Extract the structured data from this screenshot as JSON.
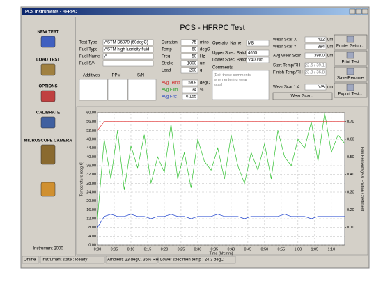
{
  "window": {
    "title": "PCS Instruments - HFRPC"
  },
  "sidebar": {
    "buttons": [
      "NEW TEST",
      "LOAD TEST",
      "OPTIONS",
      "CALIBRATE",
      "MICROSCOPE CAMERA"
    ],
    "instrument": "Instrument 2000"
  },
  "header": {
    "title": "PCS - HFRPC Test"
  },
  "test_fields": [
    {
      "label": "Test Type",
      "value": "ASTM D6079 (60degC)"
    },
    {
      "label": "Fuel Type",
      "value": "ASTM high lubricity fluid"
    },
    {
      "label": "Fuel Name",
      "value": "A"
    },
    {
      "label": "Fuel S/N"
    }
  ],
  "additives_headers": [
    "Additives",
    "PPM",
    "S/N"
  ],
  "param_fields": [
    {
      "label": "Duration",
      "value": "75",
      "unit": "mins"
    },
    {
      "label": "Temp",
      "value": "60",
      "unit": "degC"
    },
    {
      "label": "Freq",
      "value": "50",
      "unit": "Hz"
    },
    {
      "label": "Stroke",
      "value": "1000",
      "unit": "um"
    },
    {
      "label": "Load",
      "value": "200",
      "unit": "g"
    }
  ],
  "averages": [
    {
      "label": "Avg Temp",
      "value": "59.9",
      "unit": "degC",
      "color": "#d02020"
    },
    {
      "label": "Avg Film",
      "value": "34",
      "unit": "%",
      "color": "#20a020"
    },
    {
      "label": "Avg Fric",
      "value": "0.155",
      "color": "#2040c0"
    }
  ],
  "operator_fields": [
    {
      "label": "Operator Name",
      "value": "MB"
    },
    {
      "label": "Upper Spec. Batch",
      "value": "4655"
    },
    {
      "label": "Lower Spec. Batch",
      "value": "V400/05"
    }
  ],
  "comments": {
    "label": "Comments",
    "text": "[Edit these comments when entering wear scar]"
  },
  "wear_fields": [
    {
      "label": "Wear Scar X",
      "value": "412",
      "unit": "um"
    },
    {
      "label": "Wear Scar Y",
      "value": "384",
      "unit": "um"
    },
    {
      "label": "Avg Wear Scar",
      "value": "398.0",
      "unit": "um"
    },
    {
      "label": "Start Temp/RH",
      "value": "22.6 / 39.1"
    },
    {
      "label": "Finish Temp/RH",
      "value": "23.3 / 36.8"
    },
    {
      "label": "Wear Scar 1.4",
      "value": "N/A",
      "unit": "um"
    }
  ],
  "wear_button": "Wear Scar...",
  "right_buttons": [
    "Printer Setup...",
    "Print Test",
    "Save/Rename",
    "Export Test..."
  ],
  "status": [
    "Online",
    "Instrument state : Ready",
    "Ambient: 23 degC, 36% RH",
    "Lower specimen temp : 24.3 degC"
  ],
  "chart_data": {
    "type": "line",
    "ylabel": "Temperature (deg C)",
    "y2label": "Film Percentage & Friction Coefficient",
    "xlabel": "Time (hh:mm)",
    "grid": true,
    "xlim": [
      0,
      74
    ],
    "xticks": [
      {
        "value": 0,
        "label": "0:00"
      },
      {
        "value": 5,
        "label": "0:05"
      },
      {
        "value": 10,
        "label": "0:10"
      },
      {
        "value": 15,
        "label": "0:15"
      },
      {
        "value": 20,
        "label": "0:20"
      },
      {
        "value": 25,
        "label": "0:25"
      },
      {
        "value": 30,
        "label": "0:30"
      },
      {
        "value": 35,
        "label": "0:35"
      },
      {
        "value": 40,
        "label": "0:40"
      },
      {
        "value": 45,
        "label": "0:45"
      },
      {
        "value": 50,
        "label": "0:50"
      },
      {
        "value": 55,
        "label": "0:55"
      },
      {
        "value": 60,
        "label": "1:00"
      },
      {
        "value": 65,
        "label": "1:05"
      },
      {
        "value": 70,
        "label": "1:10"
      }
    ],
    "ylim": [
      0,
      60
    ],
    "yticks": [
      {
        "value": 0,
        "label": "0.00"
      },
      {
        "value": 4,
        "label": "4.00"
      },
      {
        "value": 8,
        "label": "8.00"
      },
      {
        "value": 12,
        "label": "12.00"
      },
      {
        "value": 16,
        "label": "16.00"
      },
      {
        "value": 20,
        "label": "20.00"
      },
      {
        "value": 24,
        "label": "24.00"
      },
      {
        "value": 28,
        "label": "28.00"
      },
      {
        "value": 32,
        "label": "32.00"
      },
      {
        "value": 36,
        "label": "36.00"
      },
      {
        "value": 40,
        "label": "40.00"
      },
      {
        "value": 44,
        "label": "44.00"
      },
      {
        "value": 48,
        "label": "48.00"
      },
      {
        "value": 52,
        "label": "52.00"
      },
      {
        "value": 56,
        "label": "56.00"
      },
      {
        "value": 60,
        "label": "60.00"
      }
    ],
    "y2lim": [
      0,
      0.75
    ],
    "y2ticks": [
      {
        "value": 0.1,
        "label": "0.10"
      },
      {
        "value": 0.2,
        "label": "0.20"
      },
      {
        "value": 0.3,
        "label": "0.30"
      },
      {
        "value": 0.4,
        "label": "0.40"
      },
      {
        "value": 0.5,
        "label": "0.50"
      },
      {
        "value": 0.6,
        "label": "0.60"
      },
      {
        "value": 0.7,
        "label": "0.70"
      }
    ],
    "x": [
      0,
      2,
      4,
      6,
      8,
      10,
      12,
      14,
      16,
      18,
      20,
      22,
      24,
      26,
      28,
      30,
      32,
      34,
      36,
      38,
      40,
      42,
      44,
      46,
      48,
      50,
      52,
      54,
      56,
      58,
      60,
      62,
      64,
      66,
      68,
      70,
      72,
      74
    ],
    "series": [
      {
        "color": "#30c030",
        "values": [
          12,
          48,
          30,
          52,
          25,
          45,
          35,
          50,
          28,
          40,
          33,
          55,
          30,
          42,
          26,
          48,
          38,
          34,
          44,
          30,
          50,
          36,
          28,
          42,
          34,
          46,
          30,
          52,
          40,
          36,
          48,
          44,
          56,
          38,
          60,
          42,
          50,
          46
        ]
      },
      {
        "color": "#1a3fcc",
        "values": [
          8,
          13,
          14,
          13,
          13,
          14,
          13,
          13,
          12,
          13,
          13,
          14,
          13,
          13,
          12,
          13,
          13,
          13,
          14,
          13,
          13,
          13,
          12,
          13,
          13,
          13,
          13,
          13,
          14,
          13,
          13,
          13,
          12,
          13,
          13,
          13,
          13,
          13
        ]
      },
      {
        "color": "#e03030",
        "values": [
          52,
          56,
          56,
          56,
          56,
          56,
          56,
          56,
          56,
          56,
          56,
          56,
          56,
          56,
          56,
          56,
          56,
          56,
          56,
          56,
          56,
          56,
          56,
          56,
          56,
          56,
          56,
          56,
          56,
          56,
          56,
          56,
          56,
          56,
          56,
          56,
          56,
          56
        ]
      }
    ]
  }
}
